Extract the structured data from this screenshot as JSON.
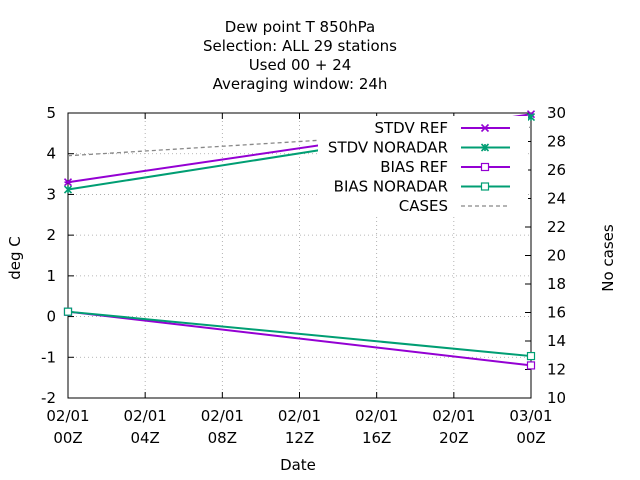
{
  "chart_data": {
    "type": "line",
    "title_lines": [
      "Dew point T 850hPa",
      "Selection: ALL      29 stations",
      "Used  00 + 24",
      "Averaging window: 24h"
    ],
    "xlabel": "Date",
    "ylabel": "deg C",
    "y2label": "No cases",
    "xlim": [
      0,
      24
    ],
    "ylim": [
      -2,
      5
    ],
    "y2lim": [
      10,
      30
    ],
    "x_ticks": [
      {
        "value": 0,
        "line1": "02/01",
        "line2": "00Z"
      },
      {
        "value": 4,
        "line1": "02/01",
        "line2": "04Z"
      },
      {
        "value": 8,
        "line1": "02/01",
        "line2": "08Z"
      },
      {
        "value": 12,
        "line1": "02/01",
        "line2": "12Z"
      },
      {
        "value": 16,
        "line1": "02/01",
        "line2": "16Z"
      },
      {
        "value": 20,
        "line1": "02/01",
        "line2": "20Z"
      },
      {
        "value": 24,
        "line1": "03/01",
        "line2": "00Z"
      }
    ],
    "y_ticks": [
      -2,
      -1,
      0,
      1,
      2,
      3,
      4,
      5
    ],
    "y2_ticks": [
      10,
      12,
      14,
      16,
      18,
      20,
      22,
      24,
      26,
      28,
      30
    ],
    "grid": true,
    "legend_position": "top-right",
    "series": [
      {
        "name": "STDV REF",
        "axis": "y",
        "color": "#9400d3",
        "marker": "star",
        "dash": false,
        "x": [
          0,
          24
        ],
        "y": [
          3.3,
          4.97
        ]
      },
      {
        "name": "STDV NORADAR",
        "axis": "y",
        "color": "#009e73",
        "marker": "x",
        "dash": false,
        "x": [
          0,
          24
        ],
        "y": [
          3.12,
          4.9
        ]
      },
      {
        "name": "BIAS REF",
        "axis": "y",
        "color": "#9400d3",
        "marker": "square",
        "dash": false,
        "x": [
          0,
          24
        ],
        "y": [
          0.12,
          -1.2
        ]
      },
      {
        "name": "BIAS NORADAR",
        "axis": "y",
        "color": "#009e73",
        "marker": "square",
        "dash": false,
        "x": [
          0,
          24
        ],
        "y": [
          0.12,
          -0.97
        ]
      },
      {
        "name": "CASES",
        "axis": "y2",
        "color": "#888888",
        "marker": "none",
        "dash": true,
        "x": [
          0,
          24
        ],
        "y": [
          27,
          29
        ]
      }
    ]
  }
}
